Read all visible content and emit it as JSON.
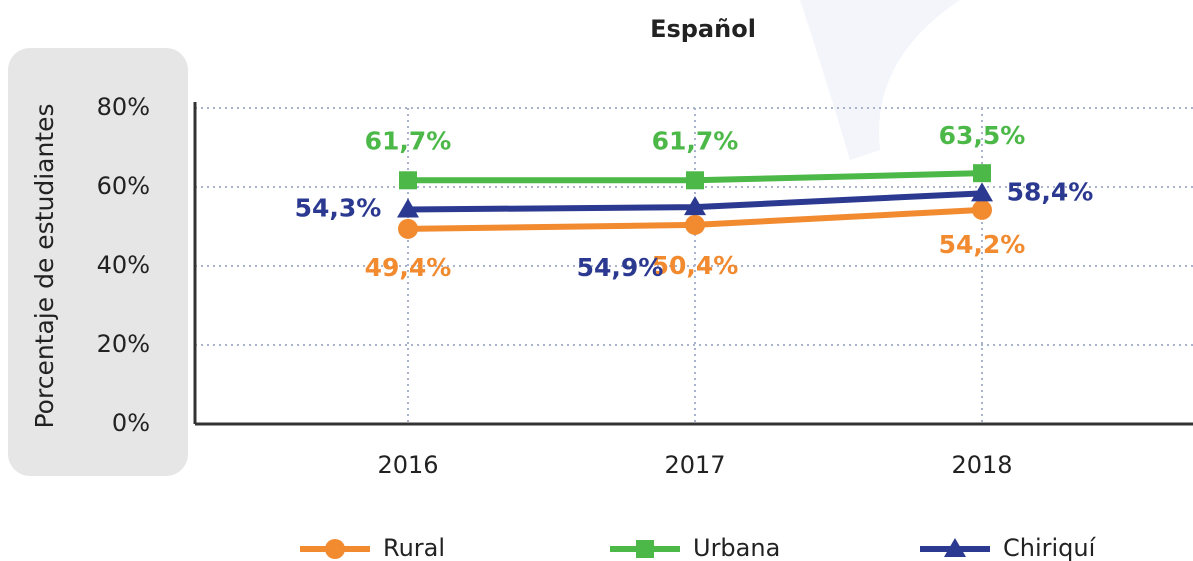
{
  "chart_data": {
    "type": "line",
    "title": "Español",
    "ylabel": "Porcentaje de estudiantes",
    "categories": [
      "2016",
      "2017",
      "2018"
    ],
    "series": [
      {
        "name": "Rural",
        "color": "#f28a30",
        "marker": "circle",
        "values": [
          49.4,
          50.4,
          54.2
        ],
        "value_labels": [
          "49,4%",
          "50,4%",
          "54,2%"
        ]
      },
      {
        "name": "Urbana",
        "color": "#4cb848",
        "marker": "square",
        "values": [
          61.7,
          61.7,
          63.5
        ],
        "value_labels": [
          "61,7%",
          "61,7%",
          "63,5%"
        ]
      },
      {
        "name": "Chiriquí",
        "color": "#2b3990",
        "marker": "triangle",
        "values": [
          54.3,
          54.9,
          58.4
        ],
        "value_labels": [
          "54,3%",
          "54,9%",
          "58,4%"
        ]
      }
    ],
    "ylim": [
      0,
      80
    ],
    "yticks": [
      {
        "value": 0,
        "label": "0%"
      },
      {
        "value": 20,
        "label": "20%"
      },
      {
        "value": 40,
        "label": "40%"
      },
      {
        "value": 60,
        "label": "60%"
      },
      {
        "value": 80,
        "label": "80%"
      }
    ],
    "grid": true,
    "legend": "bottom"
  }
}
